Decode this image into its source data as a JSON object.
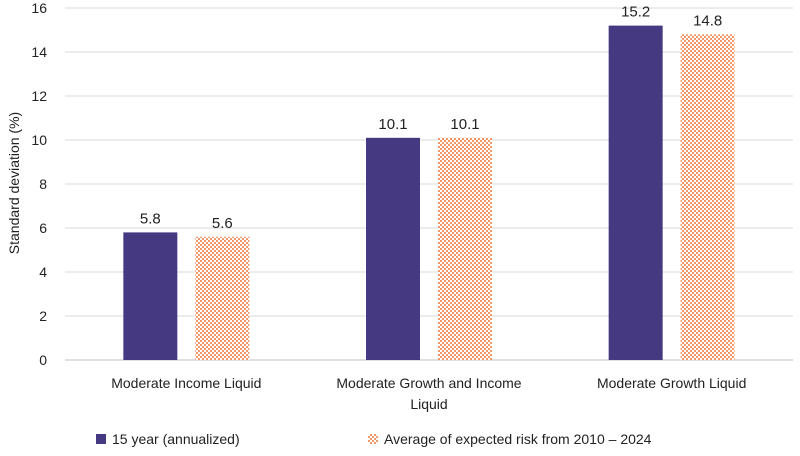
{
  "chart_data": {
    "type": "bar",
    "title": "",
    "xlabel": "",
    "ylabel": "Standard deviation (%)",
    "ylim": [
      0,
      16
    ],
    "yticks": [
      0,
      2,
      4,
      6,
      8,
      10,
      12,
      14,
      16
    ],
    "grid": true,
    "legend_position": "bottom",
    "categories": [
      [
        "Moderate Income Liquid"
      ],
      [
        "Moderate Growth and Income",
        "Liquid"
      ],
      [
        "Moderate Growth Liquid"
      ]
    ],
    "series": [
      {
        "name": "15 year (annualized)",
        "values": [
          5.8,
          10.1,
          15.2
        ],
        "labels": [
          "5.8",
          "10.1",
          "15.2"
        ],
        "color": "#453a82",
        "pattern": "solid"
      },
      {
        "name": "Average of expected risk from 2010 – 2024",
        "values": [
          5.6,
          10.1,
          14.8
        ],
        "labels": [
          "5.6",
          "10.1",
          "14.8"
        ],
        "color": "#f0844c",
        "pattern": "dotted"
      }
    ],
    "gridline_color": "#d9d9d9",
    "axis_color": "#bfbfbf"
  }
}
